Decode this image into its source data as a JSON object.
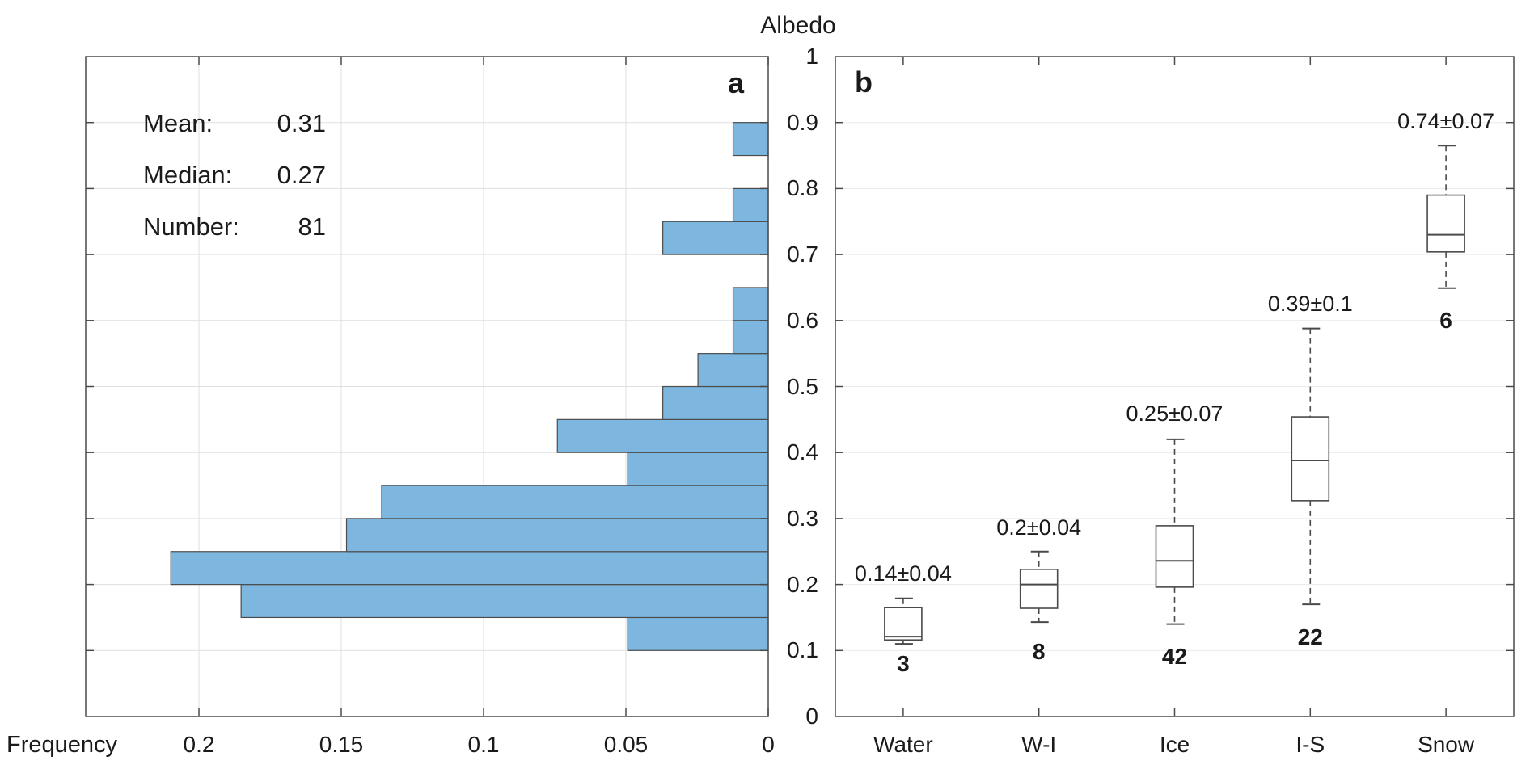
{
  "title": "Albedo",
  "colors": {
    "bar_fill": "#7db7e0",
    "bar_edge": "#4d4d4d",
    "axis": "#4a4a4a",
    "grid_a": "#dfdfdf",
    "grid_b": "#e9e9e9",
    "text": "#1a1a1a",
    "background": "#ffffff"
  },
  "panel_a": {
    "label": "a",
    "xlabel": "Frequency",
    "stats": [
      {
        "label": "Mean:",
        "value": "0.31"
      },
      {
        "label": "Median:",
        "value": "0.27"
      },
      {
        "label": "Number:",
        "value": "81"
      }
    ],
    "x_ticks": [
      {
        "label": "0.2",
        "value": 0.2
      },
      {
        "label": "0.15",
        "value": 0.15
      },
      {
        "label": "0.1",
        "value": 0.1
      },
      {
        "label": "0.05",
        "value": 0.05
      },
      {
        "label": "0",
        "value": 0
      }
    ]
  },
  "panel_b": {
    "label": "b",
    "y_axis_title": "Albedo",
    "y_ticks": [
      {
        "label": "1",
        "value": 1
      },
      {
        "label": "0.9",
        "value": 0.9
      },
      {
        "label": "0.8",
        "value": 0.8
      },
      {
        "label": "0.7",
        "value": 0.7
      },
      {
        "label": "0.6",
        "value": 0.6
      },
      {
        "label": "0.5",
        "value": 0.5
      },
      {
        "label": "0.4",
        "value": 0.4
      },
      {
        "label": "0.3",
        "value": 0.3
      },
      {
        "label": "0.2",
        "value": 0.2
      },
      {
        "label": "0.1",
        "value": 0.1
      },
      {
        "label": "0",
        "value": 0
      }
    ]
  },
  "chart_data": [
    {
      "type": "bar",
      "panel": "a",
      "orientation": "horizontal",
      "title": "",
      "xlabel": "Frequency",
      "ylabel": "Albedo",
      "x_range_frequency": [
        0.24,
        0
      ],
      "x_axis_reversed": true,
      "y_range_albedo": [
        0,
        1
      ],
      "bin_width": 0.05,
      "total_count": 81,
      "mean": 0.31,
      "median": 0.27,
      "grid": true,
      "bins": [
        {
          "albedo_from": 0.1,
          "albedo_to": 0.15,
          "count": 4,
          "frequency": 0.0494
        },
        {
          "albedo_from": 0.15,
          "albedo_to": 0.2,
          "count": 15,
          "frequency": 0.1852
        },
        {
          "albedo_from": 0.2,
          "albedo_to": 0.25,
          "count": 17,
          "frequency": 0.2099
        },
        {
          "albedo_from": 0.25,
          "albedo_to": 0.3,
          "count": 12,
          "frequency": 0.1481
        },
        {
          "albedo_from": 0.3,
          "albedo_to": 0.35,
          "count": 11,
          "frequency": 0.1358
        },
        {
          "albedo_from": 0.35,
          "albedo_to": 0.4,
          "count": 4,
          "frequency": 0.0494
        },
        {
          "albedo_from": 0.4,
          "albedo_to": 0.45,
          "count": 6,
          "frequency": 0.0741
        },
        {
          "albedo_from": 0.45,
          "albedo_to": 0.5,
          "count": 3,
          "frequency": 0.037
        },
        {
          "albedo_from": 0.5,
          "albedo_to": 0.55,
          "count": 2,
          "frequency": 0.0247
        },
        {
          "albedo_from": 0.55,
          "albedo_to": 0.6,
          "count": 1,
          "frequency": 0.0123
        },
        {
          "albedo_from": 0.6,
          "albedo_to": 0.65,
          "count": 1,
          "frequency": 0.0123
        },
        {
          "albedo_from": 0.65,
          "albedo_to": 0.7,
          "count": 0,
          "frequency": 0
        },
        {
          "albedo_from": 0.7,
          "albedo_to": 0.75,
          "count": 3,
          "frequency": 0.037
        },
        {
          "albedo_from": 0.75,
          "albedo_to": 0.8,
          "count": 1,
          "frequency": 0.0123
        },
        {
          "albedo_from": 0.8,
          "albedo_to": 0.85,
          "count": 0,
          "frequency": 0
        },
        {
          "albedo_from": 0.85,
          "albedo_to": 0.9,
          "count": 1,
          "frequency": 0.0123
        }
      ]
    },
    {
      "type": "boxplot",
      "panel": "b",
      "ylabel": "Albedo",
      "ylim": [
        0,
        1
      ],
      "grid": true,
      "categories": [
        "Water",
        "W-I",
        "Ice",
        "I-S",
        "Snow"
      ],
      "series": [
        {
          "name": "Water",
          "mean_std_label": "0.14±0.04",
          "count": 3,
          "whisker_low": 0.11,
          "q1": 0.116,
          "median": 0.121,
          "q3": 0.165,
          "whisker_high": 0.179,
          "label_y": 0.217,
          "count_y": 0.08
        },
        {
          "name": "W-I",
          "mean_std_label": "0.2±0.04",
          "count": 8,
          "whisker_low": 0.143,
          "q1": 0.164,
          "median": 0.2,
          "q3": 0.223,
          "whisker_high": 0.25,
          "label_y": 0.286,
          "count_y": 0.098
        },
        {
          "name": "Ice",
          "mean_std_label": "0.25±0.07",
          "count": 42,
          "whisker_low": 0.14,
          "q1": 0.196,
          "median": 0.236,
          "q3": 0.289,
          "whisker_high": 0.42,
          "label_y": 0.459,
          "count_y": 0.09
        },
        {
          "name": "I-S",
          "mean_std_label": "0.39±0.1",
          "count": 22,
          "whisker_low": 0.17,
          "q1": 0.327,
          "median": 0.388,
          "q3": 0.454,
          "whisker_high": 0.588,
          "label_y": 0.625,
          "count_y": 0.12
        },
        {
          "name": "Snow",
          "mean_std_label": "0.74±0.07",
          "count": 6,
          "whisker_low": 0.649,
          "q1": 0.704,
          "median": 0.73,
          "q3": 0.79,
          "whisker_high": 0.865,
          "label_y": 0.902,
          "count_y": 0.6
        }
      ]
    }
  ]
}
